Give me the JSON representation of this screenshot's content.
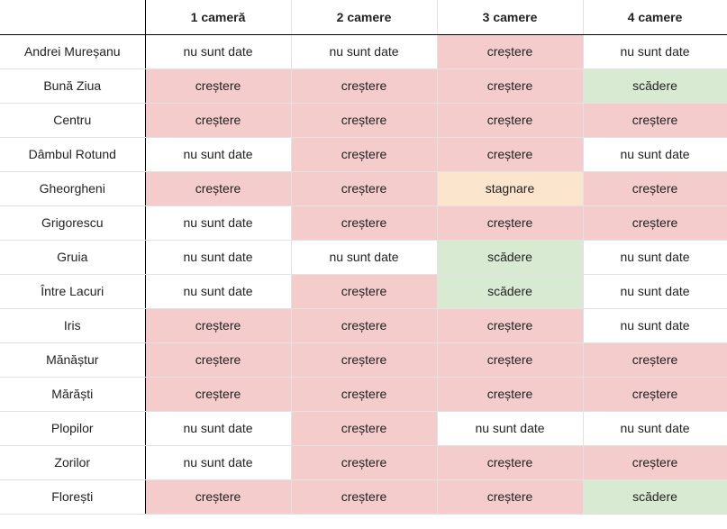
{
  "colors": {
    "crestere": "#f4cccc",
    "scadere": "#d9ead3",
    "stagnare": "#fce5cd",
    "nu_sunt_date": "#ffffff"
  },
  "columns": [
    "",
    "1 cameră",
    "2 camere",
    "3 camere",
    "4 camere"
  ],
  "rows": [
    {
      "name": "Andrei Mureșanu",
      "cells": [
        "nu sunt date",
        "nu sunt date",
        "creștere",
        "nu sunt date"
      ]
    },
    {
      "name": "Bună Ziua",
      "cells": [
        "creștere",
        "creștere",
        "creștere",
        "scădere"
      ]
    },
    {
      "name": "Centru",
      "cells": [
        "creștere",
        "creștere",
        "creștere",
        "creștere"
      ]
    },
    {
      "name": "Dâmbul Rotund",
      "cells": [
        "nu sunt date",
        "creștere",
        "creștere",
        "nu sunt date"
      ]
    },
    {
      "name": "Gheorgheni",
      "cells": [
        "creștere",
        "creștere",
        "stagnare",
        "creștere"
      ]
    },
    {
      "name": "Grigorescu",
      "cells": [
        "nu sunt date",
        "creștere",
        "creștere",
        "creștere"
      ]
    },
    {
      "name": "Gruia",
      "cells": [
        "nu sunt date",
        "nu sunt date",
        "scădere",
        "nu sunt date"
      ]
    },
    {
      "name": "Între Lacuri",
      "cells": [
        "nu sunt date",
        "creștere",
        "scădere",
        "nu sunt date"
      ]
    },
    {
      "name": "Iris",
      "cells": [
        "creștere",
        "creștere",
        "creștere",
        "nu sunt date"
      ]
    },
    {
      "name": "Mănăștur",
      "cells": [
        "creștere",
        "creștere",
        "creștere",
        "creștere"
      ]
    },
    {
      "name": "Mărăști",
      "cells": [
        "creștere",
        "creștere",
        "creștere",
        "creștere"
      ]
    },
    {
      "name": "Plopilor",
      "cells": [
        "nu sunt date",
        "creștere",
        "nu sunt date",
        "nu sunt date"
      ]
    },
    {
      "name": "Zorilor",
      "cells": [
        "nu sunt date",
        "creștere",
        "creștere",
        "creștere"
      ]
    },
    {
      "name": "Florești",
      "cells": [
        "creștere",
        "creștere",
        "creștere",
        "scădere"
      ]
    }
  ]
}
